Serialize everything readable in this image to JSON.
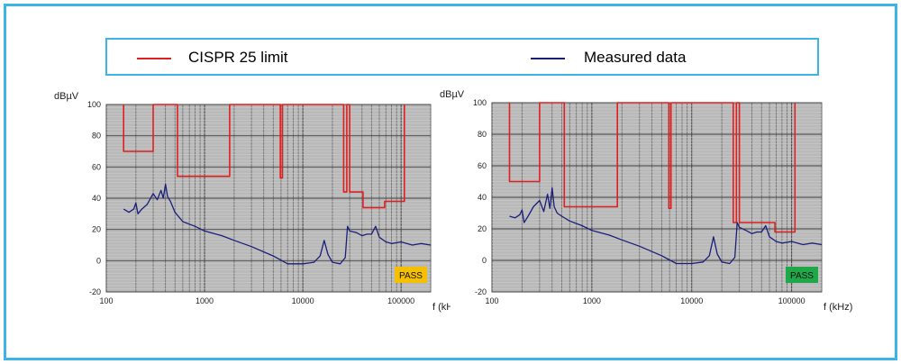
{
  "colors": {
    "frame": "#3db3e6",
    "limit": "#e02020",
    "measured": "#1a1f7a",
    "plot_bg": "#b9b9b9",
    "pass_yellow": "#f5c000",
    "pass_green": "#1fa84a"
  },
  "legend": {
    "limit_label": "CISPR 25 limit",
    "measured_label": "Measured data"
  },
  "chart_data": [
    {
      "type": "line",
      "ylabel": "dBµV",
      "xlabel": "f (kHz)",
      "xscale": "log",
      "xlim": [
        100,
        200000
      ],
      "ylim": [
        -20,
        100
      ],
      "yticks": [
        "100",
        "80",
        "60",
        "40",
        "20",
        "0",
        "-20"
      ],
      "xticks": [
        "100",
        "1000",
        "10000",
        "100000"
      ],
      "grid": true,
      "legend_position": "top",
      "badge": {
        "text": "PASS",
        "color": "#f5c000"
      },
      "series": [
        {
          "name": "CISPR 25 limit",
          "x": [
            150,
            150,
            300,
            300,
            530,
            530,
            1800,
            1800,
            5900,
            5900,
            6200,
            6200,
            26000,
            26000,
            28000,
            28000,
            30000,
            30000,
            41000,
            41000,
            68000,
            68000,
            87000,
            87000,
            108000,
            108000
          ],
          "y": [
            100,
            70,
            70,
            100,
            100,
            54,
            54,
            100,
            100,
            53,
            53,
            100,
            100,
            44,
            44,
            100,
            100,
            44,
            44,
            34,
            34,
            38,
            38,
            38,
            38,
            100
          ]
        },
        {
          "name": "Measured data",
          "x": [
            150,
            170,
            190,
            200,
            210,
            230,
            260,
            300,
            330,
            360,
            380,
            400,
            420,
            450,
            500,
            600,
            800,
            1000,
            1500,
            2000,
            3000,
            5000,
            7000,
            10000,
            13000,
            15000,
            16500,
            18000,
            20000,
            24000,
            27000,
            28500,
            30000,
            35000,
            40000,
            45000,
            50000,
            55000,
            60000,
            70000,
            80000,
            100000,
            130000,
            160000,
            200000
          ],
          "y": [
            33,
            31,
            33,
            37,
            30,
            33,
            36,
            43,
            39,
            45,
            40,
            49,
            41,
            38,
            31,
            25,
            22,
            19,
            16,
            13,
            9,
            3,
            -2,
            -2,
            -1,
            3,
            13,
            4,
            -1,
            -2,
            2,
            22,
            19,
            18,
            16,
            17,
            17,
            22,
            15,
            12,
            11,
            12,
            10,
            11,
            10
          ]
        }
      ]
    },
    {
      "type": "line",
      "ylabel": "dBµV",
      "xlabel": "f (kHz)",
      "xscale": "log",
      "xlim": [
        100,
        200000
      ],
      "ylim": [
        -20,
        100
      ],
      "yticks": [
        "100",
        "80",
        "60",
        "40",
        "20",
        "0",
        "-20"
      ],
      "xticks": [
        "100",
        "1000",
        "10000",
        "100000"
      ],
      "grid": true,
      "legend_position": "top",
      "badge": {
        "text": "PASS",
        "color": "#1fa84a"
      },
      "series": [
        {
          "name": "CISPR 25 limit",
          "x": [
            150,
            150,
            300,
            300,
            530,
            530,
            1800,
            1800,
            5900,
            5900,
            6200,
            6200,
            26000,
            26000,
            28000,
            28000,
            30000,
            30000,
            41000,
            41000,
            68000,
            68000,
            87000,
            87000,
            108000,
            108000
          ],
          "y": [
            100,
            50,
            50,
            100,
            100,
            34,
            34,
            100,
            100,
            33,
            33,
            100,
            100,
            24,
            24,
            100,
            100,
            24,
            24,
            24,
            24,
            18,
            18,
            18,
            18,
            100
          ]
        },
        {
          "name": "Measured data",
          "x": [
            150,
            170,
            190,
            200,
            210,
            230,
            260,
            300,
            330,
            360,
            380,
            400,
            420,
            450,
            500,
            600,
            800,
            1000,
            1500,
            2000,
            3000,
            5000,
            7000,
            10000,
            13000,
            15000,
            16500,
            18000,
            20000,
            24000,
            27000,
            28500,
            30000,
            35000,
            40000,
            45000,
            50000,
            55000,
            60000,
            70000,
            80000,
            100000,
            130000,
            160000,
            200000
          ],
          "y": [
            28,
            27,
            29,
            32,
            24,
            28,
            34,
            38,
            31,
            42,
            33,
            46,
            34,
            30,
            28,
            25,
            22,
            19,
            16,
            13,
            9,
            3,
            -2,
            -2,
            -1,
            3,
            15,
            4,
            -1,
            -2,
            2,
            24,
            21,
            19,
            17,
            18,
            18,
            22,
            15,
            12,
            11,
            12,
            10,
            11,
            10
          ]
        }
      ]
    }
  ]
}
